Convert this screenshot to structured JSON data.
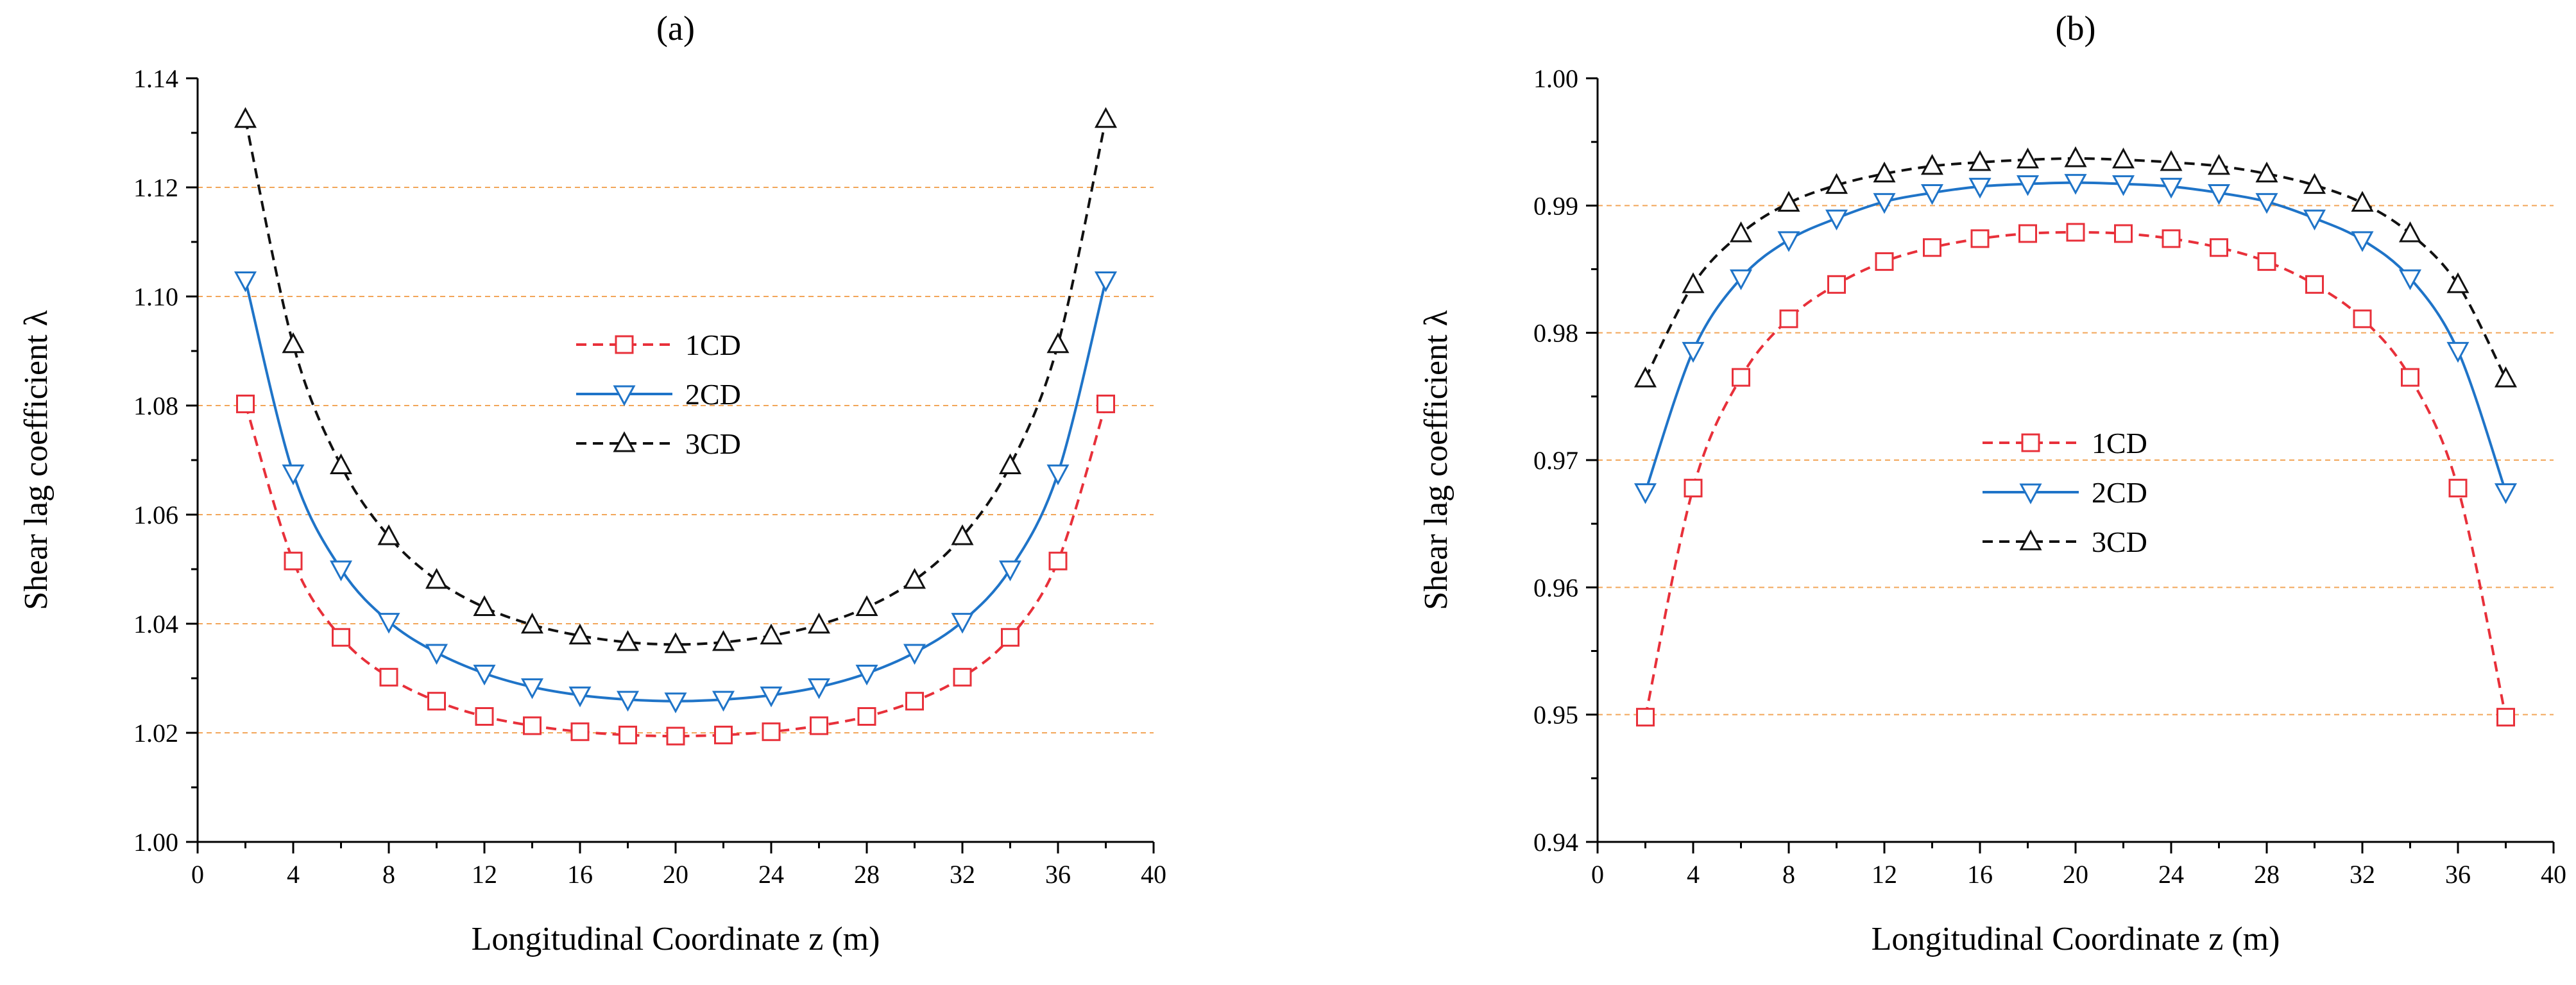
{
  "chart_data": [
    {
      "type": "line",
      "title": "(a)",
      "xlabel": "Longitudinal Coordinate z (m)",
      "ylabel": "Shear lag coefficient λ",
      "xlim": [
        0,
        40
      ],
      "ylim": [
        1.0,
        1.14
      ],
      "xticks": [
        0,
        4,
        8,
        12,
        16,
        20,
        24,
        28,
        32,
        36,
        40
      ],
      "xtick_labels": [
        "0",
        "4",
        "8",
        "12",
        "16",
        "20",
        "24",
        "28",
        "32",
        "36",
        "40"
      ],
      "yticks": [
        1.0,
        1.02,
        1.04,
        1.06,
        1.08,
        1.1,
        1.12,
        1.14
      ],
      "ytick_labels": [
        "1.00",
        "1.02",
        "1.04",
        "1.06",
        "1.08",
        "1.10",
        "1.12",
        "1.14"
      ],
      "grid_y": [
        1.02,
        1.04,
        1.06,
        1.08,
        1.1,
        1.12
      ],
      "legend_position": "center",
      "x": [
        2,
        4,
        6,
        8,
        10,
        12,
        14,
        16,
        18,
        20,
        22,
        24,
        26,
        28,
        30,
        32,
        34,
        36,
        38
      ],
      "series": [
        {
          "name": "1CD",
          "color": "#e8303a",
          "dash": "dashed",
          "marker": "square",
          "values": [
            1.0803,
            1.0515,
            1.0375,
            1.0302,
            1.0258,
            1.023,
            1.0213,
            1.0202,
            1.0196,
            1.0194,
            1.0196,
            1.0202,
            1.0213,
            1.023,
            1.0258,
            1.0302,
            1.0375,
            1.0515,
            1.0803
          ]
        },
        {
          "name": "2CD",
          "color": "#1f74c8",
          "dash": "solid",
          "marker": "triangle-down",
          "values": [
            1.103,
            1.0676,
            1.05,
            1.0404,
            1.0347,
            1.0309,
            1.0284,
            1.0269,
            1.0261,
            1.0258,
            1.0261,
            1.0269,
            1.0284,
            1.0309,
            1.0347,
            1.0404,
            1.05,
            1.0676,
            1.103
          ]
        },
        {
          "name": "3CD",
          "color": "#111111",
          "dash": "dashed",
          "marker": "triangle-up",
          "values": [
            1.1325,
            1.0912,
            1.069,
            1.056,
            1.048,
            1.043,
            1.0398,
            1.0378,
            1.0366,
            1.0362,
            1.0366,
            1.0378,
            1.0398,
            1.043,
            1.048,
            1.056,
            1.069,
            1.0912,
            1.1325
          ]
        }
      ]
    },
    {
      "type": "line",
      "title": "(b)",
      "xlabel": "Longitudinal Coordinate z (m)",
      "ylabel": "Shear lag coefficient λ",
      "xlim": [
        0,
        40
      ],
      "ylim": [
        0.94,
        1.0
      ],
      "xticks": [
        0,
        4,
        8,
        12,
        16,
        20,
        24,
        28,
        32,
        36,
        40
      ],
      "xtick_labels": [
        "0",
        "4",
        "8",
        "12",
        "16",
        "20",
        "24",
        "28",
        "32",
        "36",
        "40"
      ],
      "yticks": [
        0.94,
        0.95,
        0.96,
        0.97,
        0.98,
        0.99,
        1.0
      ],
      "ytick_labels": [
        "0.94",
        "0.95",
        "0.96",
        "0.97",
        "0.98",
        "0.99",
        "1.00"
      ],
      "grid_y": [
        0.95,
        0.96,
        0.97,
        0.98,
        0.99
      ],
      "legend_position": "center",
      "x": [
        2,
        4,
        6,
        8,
        10,
        12,
        14,
        16,
        18,
        20,
        22,
        24,
        26,
        28,
        30,
        32,
        34,
        36,
        38
      ],
      "series": [
        {
          "name": "1CD",
          "color": "#e8303a",
          "dash": "dashed",
          "marker": "square",
          "values": [
            0.9498,
            0.9678,
            0.9765,
            0.9811,
            0.9838,
            0.9856,
            0.9867,
            0.9874,
            0.9878,
            0.9879,
            0.9878,
            0.9874,
            0.9867,
            0.9856,
            0.9838,
            0.9811,
            0.9765,
            0.9678,
            0.9498
          ]
        },
        {
          "name": "2CD",
          "color": "#1f74c8",
          "dash": "solid",
          "marker": "triangle-down",
          "values": [
            0.9675,
            0.9786,
            0.9843,
            0.9873,
            0.989,
            0.9903,
            0.991,
            0.9915,
            0.9917,
            0.9918,
            0.9917,
            0.9915,
            0.991,
            0.9903,
            0.989,
            0.9873,
            0.9843,
            0.9786,
            0.9675
          ]
        },
        {
          "name": "3CD",
          "color": "#111111",
          "dash": "dashed",
          "marker": "triangle-up",
          "values": [
            0.9764,
            0.9838,
            0.9878,
            0.9902,
            0.9916,
            0.9925,
            0.9931,
            0.9934,
            0.9936,
            0.9937,
            0.9936,
            0.9934,
            0.9931,
            0.9925,
            0.9916,
            0.9902,
            0.9878,
            0.9838,
            0.9764
          ]
        }
      ]
    }
  ]
}
